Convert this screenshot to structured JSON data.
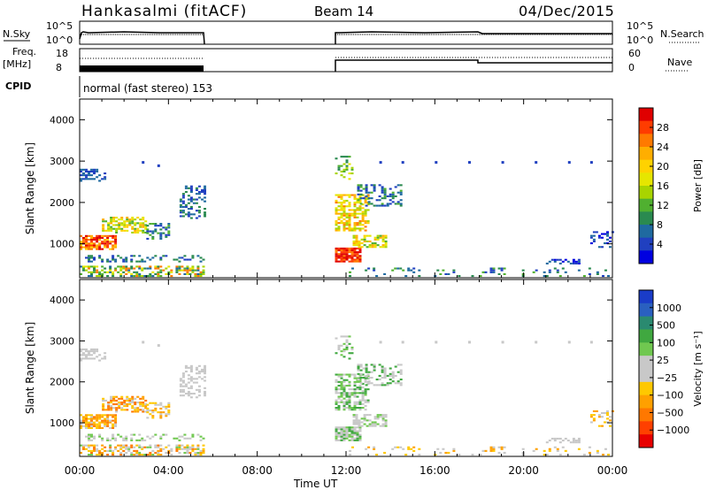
{
  "header": {
    "station": "Hankasalmi (fitACF)",
    "beam": "Beam 14",
    "date": "04/Dec/2015"
  },
  "top_panels": {
    "nsky_label": "N.Sky",
    "nsearch_label": "N.Search",
    "noise_ticks": [
      "10^5",
      "10^0"
    ],
    "noise_ticks_right": [
      "10^5",
      "10^0"
    ],
    "freq_label": "Freq.",
    "freq_unit": "[MHz]",
    "freq_ticks": [
      "18",
      "8"
    ],
    "nave_label": "Nave",
    "nave_ticks": [
      "60",
      "0"
    ],
    "cpid_label": "CPID",
    "cpid_text": "normal (fast stereo) 153"
  },
  "chart_data": [
    {
      "type": "heatmap",
      "name": "power",
      "ylabel": "Slant Range [km]",
      "yticks": [
        "4000",
        "3000",
        "2000",
        "1000"
      ],
      "ylim": [
        180,
        4500
      ],
      "xlim": [
        0,
        24
      ],
      "colorbar_label": "Power [dB]",
      "colorbar_ticks": [
        "28",
        "24",
        "20",
        "16",
        "12",
        "8",
        "4"
      ],
      "colorbar_colors": [
        "#e00000",
        "#ff3c00",
        "#ff7a00",
        "#ffae00",
        "#ffd200",
        "#e6e600",
        "#a8d400",
        "#50b030",
        "#2a8a50",
        "#1f6aa0",
        "#2040c0",
        "#0000e0"
      ]
    },
    {
      "type": "heatmap",
      "name": "velocity",
      "ylabel": "Slant Range [km]",
      "yticks": [
        "4000",
        "3000",
        "2000",
        "1000"
      ],
      "ylim": [
        180,
        4500
      ],
      "xlim": [
        0,
        24
      ],
      "colorbar_label": "Velocity [m s⁻¹]",
      "colorbar_ticks": [
        "1000",
        "500",
        "100",
        "25",
        "−25",
        "−100",
        "−500",
        "−1000"
      ],
      "colorbar_colors": [
        "#1a3cc8",
        "#2a60c0",
        "#2a8a70",
        "#40a840",
        "#70c850",
        "#c8c8c8",
        "#c8c8c8",
        "#ffc800",
        "#ffa000",
        "#ff7800",
        "#ff4000",
        "#e80000"
      ]
    }
  ],
  "xaxis": {
    "ticks": [
      "00:00",
      "04:00",
      "08:00",
      "12:00",
      "16:00",
      "20:00",
      "00:00"
    ],
    "label": "Time UT"
  }
}
